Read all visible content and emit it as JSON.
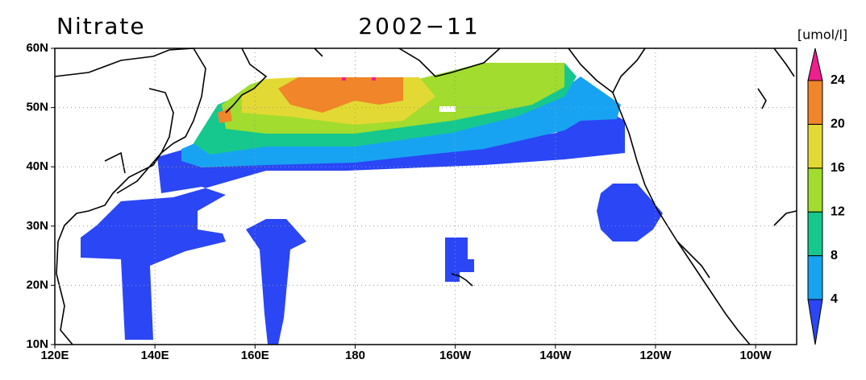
{
  "map": {
    "title": "Nitrate",
    "date": "2002−11",
    "units": "[umol/l]",
    "lat_ticks": [
      {
        "value": 60,
        "label": "60N"
      },
      {
        "value": 50,
        "label": "50N"
      },
      {
        "value": 40,
        "label": "40N"
      },
      {
        "value": 30,
        "label": "30N"
      },
      {
        "value": 20,
        "label": "20N"
      },
      {
        "value": 10,
        "label": "10N"
      }
    ],
    "lon_ticks": [
      {
        "value": 120,
        "label": "120E"
      },
      {
        "value": 140,
        "label": "140E"
      },
      {
        "value": 160,
        "label": "160E"
      },
      {
        "value": 180,
        "label": "180"
      },
      {
        "value": 200,
        "label": "160W"
      },
      {
        "value": 220,
        "label": "140W"
      },
      {
        "value": 240,
        "label": "120W"
      },
      {
        "value": 260,
        "label": "100W"
      }
    ],
    "lat_range": [
      10,
      60
    ],
    "lon_range": [
      120,
      268.2
    ],
    "colorbar": {
      "levels": [
        4,
        8,
        12,
        16,
        20,
        24
      ],
      "colors": [
        "#2a46f5",
        "#18a3f2",
        "#16c88e",
        "#a2dc2e",
        "#e3d934",
        "#f0852a",
        "#ee1f8e"
      ]
    }
  }
}
